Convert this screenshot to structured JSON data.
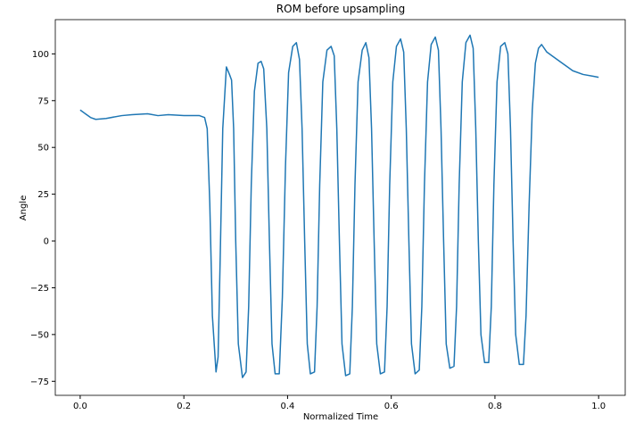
{
  "chart_data": {
    "type": "line",
    "title": "ROM before upsampling",
    "x_label": "Normalized Time",
    "y_label": "Angle",
    "x": [
      0,
      0.01,
      0.02,
      0.03,
      0.05,
      0.08,
      0.1,
      0.13,
      0.15,
      0.17,
      0.2,
      0.23,
      0.24,
      0.245,
      0.25,
      0.255,
      0.262,
      0.266,
      0.27,
      0.275,
      0.282,
      0.288,
      0.292,
      0.296,
      0.3,
      0.305,
      0.313,
      0.32,
      0.325,
      0.33,
      0.336,
      0.343,
      0.349,
      0.354,
      0.36,
      0.365,
      0.37,
      0.376,
      0.384,
      0.39,
      0.396,
      0.402,
      0.41,
      0.417,
      0.423,
      0.428,
      0.433,
      0.438,
      0.444,
      0.452,
      0.457,
      0.462,
      0.468,
      0.476,
      0.484,
      0.49,
      0.495,
      0.5,
      0.505,
      0.512,
      0.52,
      0.525,
      0.53,
      0.536,
      0.544,
      0.551,
      0.557,
      0.562,
      0.567,
      0.572,
      0.579,
      0.587,
      0.592,
      0.597,
      0.603,
      0.61,
      0.618,
      0.624,
      0.629,
      0.634,
      0.639,
      0.646,
      0.654,
      0.659,
      0.664,
      0.67,
      0.677,
      0.685,
      0.691,
      0.696,
      0.701,
      0.706,
      0.713,
      0.721,
      0.726,
      0.731,
      0.737,
      0.744,
      0.752,
      0.758,
      0.763,
      0.768,
      0.773,
      0.78,
      0.788,
      0.793,
      0.798,
      0.804,
      0.811,
      0.819,
      0.825,
      0.83,
      0.835,
      0.84,
      0.847,
      0.855,
      0.86,
      0.866,
      0.872,
      0.878,
      0.884,
      0.89,
      0.9,
      0.91,
      0.93,
      0.95,
      0.97,
      0.99,
      1.0
    ],
    "series": [
      {
        "color": "#1f77b4",
        "values": [
          70,
          68,
          66,
          65,
          65.5,
          67,
          67.5,
          68,
          67,
          67.5,
          67,
          67,
          66,
          60,
          20,
          -40,
          -70,
          -62,
          -10,
          60,
          93,
          89,
          86,
          60,
          0,
          -55,
          -73,
          -70,
          -35,
          30,
          80,
          95,
          96,
          92,
          60,
          0,
          -55,
          -71,
          -71,
          -30,
          40,
          90,
          104,
          106,
          97,
          60,
          0,
          -55,
          -71,
          -70,
          -35,
          30,
          85,
          102,
          104,
          99,
          60,
          0,
          -55,
          -72,
          -71,
          -35,
          30,
          85,
          102,
          106,
          98,
          60,
          0,
          -55,
          -71,
          -70,
          -35,
          30,
          85,
          104,
          108,
          101,
          60,
          0,
          -55,
          -71,
          -69,
          -35,
          30,
          85,
          105,
          109,
          102,
          60,
          0,
          -55,
          -68,
          -67,
          -35,
          30,
          85,
          106,
          110,
          103,
          60,
          0,
          -50,
          -65,
          -65,
          -35,
          30,
          85,
          104,
          106,
          100,
          60,
          0,
          -50,
          -66,
          -66,
          -40,
          20,
          70,
          95,
          103,
          105,
          101,
          99,
          95,
          91,
          89,
          88,
          87.5
        ]
      }
    ],
    "xlim": [
      -0.048,
      1.053
    ],
    "ylim": [
      -82.5,
      118.3
    ],
    "xticks": [
      {
        "value": 0,
        "label": "0.0"
      },
      0.2,
      0.4,
      0.6,
      0.8,
      {
        "value": 1,
        "label": "1.0"
      }
    ],
    "yticks": [
      {
        "value": -75,
        "label": "−75"
      },
      {
        "value": -50,
        "label": "−50"
      },
      {
        "value": -25,
        "label": "−25"
      },
      0,
      25,
      50,
      75,
      100
    ],
    "grid": false
  }
}
